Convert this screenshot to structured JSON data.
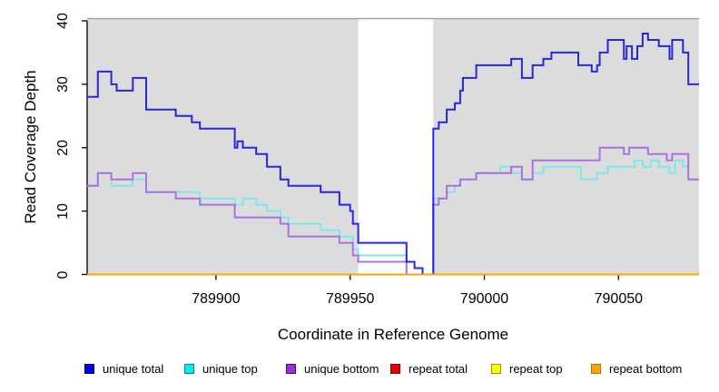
{
  "chart_data": {
    "type": "line",
    "subtype": "step-after",
    "xlabel": "Coordinate in Reference Genome",
    "ylabel": "Read Coverage Depth",
    "xlim": [
      789852,
      790080
    ],
    "ylim": [
      0,
      43
    ],
    "xticks": [
      789900,
      789950,
      790000,
      790050
    ],
    "yticks": [
      0,
      10,
      20,
      30,
      40
    ],
    "grid": false,
    "legend_position": "bottom",
    "panel_bg": "#DCDCDC",
    "panel_top_border": "#A3A3A3",
    "highlight_region": {
      "x0": 789953,
      "x1": 789981,
      "color": "#FFFFFF"
    },
    "legend_lefts": [
      93,
      203,
      315,
      430,
      541,
      651
    ],
    "series": [
      {
        "name": "repeat-total",
        "label": "repeat total",
        "line_color": "#DD0000",
        "legend_fill": "#EE0000",
        "legend_border": "#8B0000",
        "points": [
          [
            789852,
            0
          ],
          [
            790080,
            0
          ]
        ]
      },
      {
        "name": "repeat-top",
        "label": "repeat top",
        "line_color": "#F2F200",
        "legend_fill": "#FFFF00",
        "legend_border": "#9B9B00",
        "points": [
          [
            789852,
            0
          ],
          [
            790080,
            0
          ]
        ]
      },
      {
        "name": "unique-top",
        "label": "unique top",
        "line_color": "#7FE6EC",
        "legend_fill": "#00EEEE",
        "legend_border": "#008B8B",
        "points": [
          [
            789852,
            14
          ],
          [
            789856,
            16
          ],
          [
            789861,
            14
          ],
          [
            789869,
            15
          ],
          [
            789874,
            13
          ],
          [
            789894,
            12
          ],
          [
            789907,
            11
          ],
          [
            789910,
            12
          ],
          [
            789915,
            11
          ],
          [
            789919,
            10
          ],
          [
            789924,
            9
          ],
          [
            789927,
            8
          ],
          [
            789939,
            7
          ],
          [
            789946,
            6
          ],
          [
            789951,
            4
          ],
          [
            789953,
            3
          ],
          [
            789971,
            0
          ],
          [
            789981,
            12
          ],
          [
            789986,
            13
          ],
          [
            789989,
            14
          ],
          [
            789991,
            15
          ],
          [
            789997,
            16
          ],
          [
            790006,
            17
          ],
          [
            790010,
            16
          ],
          [
            790014,
            15
          ],
          [
            790018,
            16
          ],
          [
            790022,
            17
          ],
          [
            790036,
            15
          ],
          [
            790042,
            16
          ],
          [
            790046,
            17
          ],
          [
            790056,
            18
          ],
          [
            790059,
            17
          ],
          [
            790062,
            18
          ],
          [
            790065,
            17
          ],
          [
            790069,
            16
          ],
          [
            790071,
            18
          ],
          [
            790074,
            17
          ],
          [
            790076,
            15
          ],
          [
            790080,
            15
          ]
        ]
      },
      {
        "name": "unique-bottom",
        "label": "unique bottom",
        "line_color": "#AC71E0",
        "legend_fill": "#9932CC",
        "legend_border": "#4B0082",
        "points": [
          [
            789852,
            14
          ],
          [
            789856,
            16
          ],
          [
            789861,
            15
          ],
          [
            789869,
            16
          ],
          [
            789874,
            13
          ],
          [
            789885,
            12
          ],
          [
            789894,
            11
          ],
          [
            789907,
            9
          ],
          [
            789924,
            8
          ],
          [
            789927,
            6
          ],
          [
            789946,
            5
          ],
          [
            789951,
            3
          ],
          [
            789953,
            2
          ],
          [
            789971,
            0
          ],
          [
            789981,
            11
          ],
          [
            789983,
            12
          ],
          [
            789986,
            14
          ],
          [
            789991,
            15
          ],
          [
            789997,
            16
          ],
          [
            790010,
            17
          ],
          [
            790014,
            15
          ],
          [
            790018,
            18
          ],
          [
            790043,
            20
          ],
          [
            790052,
            19
          ],
          [
            790054,
            20
          ],
          [
            790061,
            19
          ],
          [
            790068,
            18
          ],
          [
            790070,
            19
          ],
          [
            790076,
            15
          ],
          [
            790080,
            15
          ]
        ]
      },
      {
        "name": "unique-total",
        "label": "unique total",
        "line_color": "#2727DE",
        "legend_fill": "#0000EE",
        "legend_border": "#000080",
        "points": [
          [
            789852,
            28
          ],
          [
            789856,
            32
          ],
          [
            789861,
            30
          ],
          [
            789863,
            29
          ],
          [
            789869,
            31
          ],
          [
            789874,
            26
          ],
          [
            789885,
            25
          ],
          [
            789891,
            24
          ],
          [
            789894,
            23
          ],
          [
            789907,
            20
          ],
          [
            789908,
            21
          ],
          [
            789910,
            20
          ],
          [
            789915,
            19
          ],
          [
            789919,
            17
          ],
          [
            789924,
            15
          ],
          [
            789927,
            14
          ],
          [
            789939,
            13
          ],
          [
            789946,
            11
          ],
          [
            789950,
            10
          ],
          [
            789951,
            8
          ],
          [
            789953,
            5
          ],
          [
            789971,
            2
          ],
          [
            789974,
            1
          ],
          [
            789977,
            0
          ],
          [
            789981,
            23
          ],
          [
            789983,
            24
          ],
          [
            789986,
            26
          ],
          [
            789989,
            27
          ],
          [
            789991,
            29
          ],
          [
            789992,
            31
          ],
          [
            789997,
            33
          ],
          [
            790010,
            34
          ],
          [
            790014,
            31
          ],
          [
            790018,
            33
          ],
          [
            790022,
            34
          ],
          [
            790025,
            35
          ],
          [
            790035,
            33
          ],
          [
            790040,
            32
          ],
          [
            790042,
            33
          ],
          [
            790043,
            35
          ],
          [
            790046,
            37
          ],
          [
            790052,
            34
          ],
          [
            790053,
            36
          ],
          [
            790055,
            34
          ],
          [
            790057,
            36
          ],
          [
            790059,
            38
          ],
          [
            790061,
            37
          ],
          [
            790065,
            36
          ],
          [
            790069,
            34
          ],
          [
            790070,
            37
          ],
          [
            790074,
            35
          ],
          [
            790076,
            30
          ],
          [
            790080,
            30
          ]
        ]
      },
      {
        "name": "repeat-bottom",
        "label": "repeat bottom",
        "line_color": "#FFA500",
        "legend_fill": "#FFA500",
        "legend_border": "#B87400",
        "points": [
          [
            789852,
            0
          ],
          [
            790080,
            0
          ]
        ]
      }
    ],
    "legend_order": [
      "unique-total",
      "unique-top",
      "unique-bottom",
      "repeat-total",
      "repeat-top",
      "repeat-bottom"
    ]
  }
}
